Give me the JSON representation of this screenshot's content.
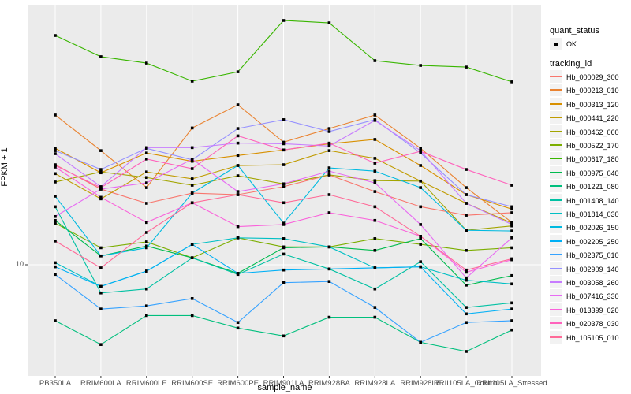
{
  "figure": {
    "background": "#FFFFFF",
    "panel_background": "#EBEBEB",
    "gridline_color": "#FFFFFF",
    "tick_color": "#333333"
  },
  "axes": {
    "x": {
      "title": "sample_name"
    },
    "y": {
      "title": "FPKM + 1",
      "tick_label": "10"
    }
  },
  "legend": {
    "quant_status_title": "quant_status",
    "ok_label": "OK",
    "tracking_id_title": "tracking_id"
  },
  "chart_data": {
    "type": "line",
    "title": "",
    "xlabel": "sample_name",
    "ylabel": "FPKM + 1",
    "y_scale": "log10",
    "y_ticks": [
      10
    ],
    "legend_position": "right",
    "grid": "on",
    "point_shape": "filled-square",
    "point_color": "#000000",
    "quant_status": "OK",
    "x_categories": [
      "PB350LA",
      "RRIM600LA",
      "RRIM600LE",
      "RRIM600SE",
      "RRIM600PE",
      "RRIM901LA",
      "RRIM928BA",
      "RRIM928LA",
      "RRIM928LE",
      "RRII105LA_Control",
      "RRII105LA_Stressed"
    ],
    "series": [
      {
        "name": "Hb_000029_300",
        "color": "#F8766D",
        "values": [
          26.5,
          20.9,
          18.2,
          20.1,
          19.8,
          21.4,
          24.0,
          20.4,
          17.6,
          16.2,
          16.6
        ]
      },
      {
        "name": "Hb_000213_010",
        "color": "#EA8331",
        "values": [
          43.0,
          30.4,
          21.2,
          37.9,
          47.5,
          33.0,
          37.7,
          43.0,
          31.1,
          21.2,
          15.1
        ]
      },
      {
        "name": "Hb_000313_120",
        "color": "#D89000",
        "values": [
          31.1,
          24.5,
          29.7,
          27.4,
          29.0,
          30.6,
          32.5,
          33.9,
          26.3,
          19.8,
          17.2
        ]
      },
      {
        "name": "Hb_000441_220",
        "color": "#C09B00",
        "values": [
          24.3,
          19.0,
          24.7,
          23.1,
          26.3,
          26.5,
          30.4,
          28.2,
          22.6,
          18.2,
          15.0
        ]
      },
      {
        "name": "Hb_000462_060",
        "color": "#A3A500",
        "values": [
          22.4,
          24.7,
          23.4,
          21.7,
          23.8,
          22.0,
          24.0,
          22.7,
          22.6,
          14.0,
          14.6
        ]
      },
      {
        "name": "Hb_000522_170",
        "color": "#7CAE00",
        "values": [
          15.0,
          11.8,
          12.5,
          10.7,
          13.0,
          11.9,
          11.9,
          12.9,
          12.2,
          11.5,
          11.8
        ]
      },
      {
        "name": "Hb_000617_180",
        "color": "#39B600",
        "values": [
          93.3,
          75.9,
          71.3,
          59.8,
          65.5,
          108.0,
          105.5,
          73.0,
          69.7,
          68.6,
          59.4
        ]
      },
      {
        "name": "Hb_000975_040",
        "color": "#00BB4E",
        "values": [
          15.4,
          10.9,
          12.0,
          10.7,
          9.2,
          11.8,
          11.9,
          11.5,
          12.9,
          8.2,
          9.0
        ]
      },
      {
        "name": "Hb_001221_080",
        "color": "#00BF7D",
        "values": [
          5.8,
          4.6,
          6.1,
          6.1,
          5.4,
          5.0,
          6.0,
          6.0,
          4.7,
          4.3,
          5.3
        ]
      },
      {
        "name": "Hb_001408_140",
        "color": "#00C1A3",
        "values": [
          17.6,
          7.6,
          7.9,
          10.7,
          9.1,
          11.1,
          9.6,
          7.9,
          10.3,
          6.6,
          6.9
        ]
      },
      {
        "name": "Hb_001814_030",
        "color": "#00BFC4",
        "values": [
          10.2,
          8.1,
          9.4,
          12.2,
          13.0,
          12.9,
          11.9,
          9.7,
          9.8,
          8.6,
          8.3
        ]
      },
      {
        "name": "Hb_002026_150",
        "color": "#00BAE0",
        "values": [
          19.5,
          10.9,
          11.8,
          20.1,
          26.3,
          15.0,
          25.7,
          24.9,
          21.2,
          14.0,
          13.9
        ]
      },
      {
        "name": "Hb_002205_250",
        "color": "#00B0F6",
        "values": [
          9.8,
          8.1,
          9.4,
          12.2,
          9.2,
          9.5,
          9.6,
          9.7,
          9.8,
          6.2,
          6.5
        ]
      },
      {
        "name": "Hb_002375_010",
        "color": "#35A2FF",
        "values": [
          9.1,
          6.5,
          6.7,
          7.2,
          5.7,
          8.4,
          8.5,
          6.6,
          4.7,
          5.7,
          5.8
        ]
      },
      {
        "name": "Hb_002909_140",
        "color": "#9590FF",
        "values": [
          30.4,
          25.3,
          31.1,
          27.8,
          37.7,
          41.1,
          36.6,
          41.1,
          29.7,
          19.8,
          17.6
        ]
      },
      {
        "name": "Hb_003058_260",
        "color": "#C77CFF",
        "values": [
          29.5,
          21.4,
          31.3,
          31.3,
          32.7,
          32.5,
          31.8,
          40.8,
          30.4,
          18.2,
          14.8
        ]
      },
      {
        "name": "Hb_007416_330",
        "color": "#E76BF3",
        "values": [
          16.0,
          20.9,
          22.2,
          28.0,
          20.4,
          22.0,
          24.9,
          22.2,
          14.8,
          8.8,
          13.0
        ]
      },
      {
        "name": "Hb_013399_020",
        "color": "#FA62DB",
        "values": [
          25.9,
          19.3,
          15.1,
          18.3,
          14.5,
          14.8,
          16.6,
          15.4,
          13.2,
          9.3,
          10.5
        ]
      },
      {
        "name": "Hb_020378_030",
        "color": "#FF62BC",
        "values": [
          26.3,
          21.2,
          28.0,
          25.5,
          35.1,
          30.6,
          32.7,
          26.9,
          30.2,
          25.3,
          21.7
        ]
      },
      {
        "name": "Hb_105105_010",
        "color": "#FF6A98",
        "values": [
          12.6,
          9.7,
          13.7,
          18.3,
          19.8,
          18.3,
          19.8,
          17.6,
          13.2,
          9.5,
          10.6
        ]
      }
    ]
  }
}
